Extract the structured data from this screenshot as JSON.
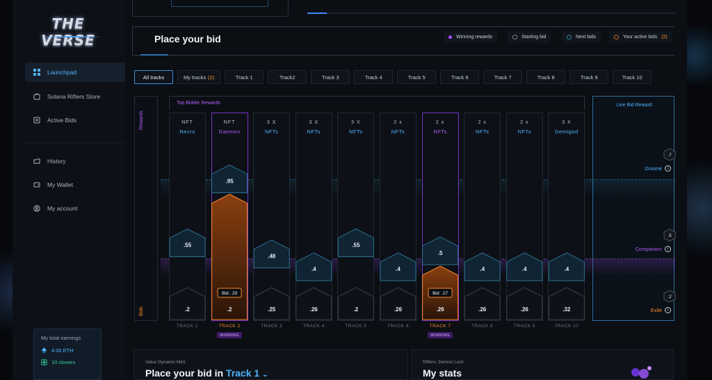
{
  "app": {
    "logo": "THE VERSE"
  },
  "sidebar": {
    "items": [
      {
        "label": "Launchpad",
        "icon": "grid-icon",
        "active": true
      },
      {
        "label": "Solana Rifters Store",
        "icon": "store-icon",
        "active": false
      },
      {
        "label": "Active Bids",
        "icon": "bids-icon",
        "active": false
      },
      {
        "label": "History",
        "icon": "folder-icon",
        "active": false
      },
      {
        "label": "My Wallet",
        "icon": "wallet-icon",
        "active": false
      },
      {
        "label": "My account",
        "icon": "user-icon",
        "active": false
      }
    ],
    "earnings": {
      "title": "My total earnings",
      "eth": "4.00 ETH",
      "clovers": "10 clovers"
    }
  },
  "header": {
    "title": "Place your bid",
    "legend": [
      {
        "label": "Winning rewards",
        "type": "dot",
        "color": "#9b4dff"
      },
      {
        "label": "Starting bid",
        "type": "hex",
        "color": "#9aa3ae"
      },
      {
        "label": "Next bids",
        "type": "hex",
        "color": "#37b7d6"
      },
      {
        "label": "Your active bids",
        "type": "hex",
        "color": "#ff8a2a",
        "count": "(2)"
      }
    ]
  },
  "tabs": [
    {
      "label": "All tracks",
      "active": true
    },
    {
      "label": "My tracks",
      "count": "(2)"
    },
    {
      "label": "Track 1"
    },
    {
      "label": "Track2"
    },
    {
      "label": "Track 3"
    },
    {
      "label": "Track 4"
    },
    {
      "label": "Track 5"
    },
    {
      "label": "Track 6"
    },
    {
      "label": "Track 7"
    },
    {
      "label": "Track 8"
    },
    {
      "label": "Track 9"
    },
    {
      "label": "Track 10"
    }
  ],
  "board": {
    "rewards_label": "Rewards",
    "bids_label": "Bids",
    "top_bidder_label": "Top Bidder Rewards",
    "line_bid_label": "Line Bid Reward",
    "winning_label": "WINNING",
    "tiers": [
      {
        "name": "Gnome",
        "value": ".7",
        "color": "#4fb4ff"
      },
      {
        "name": "Companion",
        "value": ".5",
        "color": "#b55cff"
      },
      {
        "name": "Exile",
        "value": ".2",
        "color": "#ff8a2a"
      }
    ],
    "tracks": [
      {
        "track": "TRACK 1",
        "head": "NFT",
        "sub": "Necro",
        "start": ".2",
        "next": ".55",
        "winning": false,
        "bid": null
      },
      {
        "track": "TRACK 2",
        "head": "NFT",
        "sub": "Daemon",
        "start": ".2",
        "next": ".95",
        "winning": true,
        "bid": "Bid: .29"
      },
      {
        "track": "TRACK 3",
        "head": "3 X",
        "sub": "NFTs",
        "start": ".25",
        "next": ".48",
        "winning": false,
        "bid": null
      },
      {
        "track": "TRACK 4",
        "head": "3 X",
        "sub": "NFTs",
        "start": ".26",
        "next": ".4",
        "winning": false,
        "bid": null
      },
      {
        "track": "TRACK 5",
        "head": "3 X",
        "sub": "NFTs",
        "start": ".2",
        "next": ".55",
        "winning": false,
        "bid": null
      },
      {
        "track": "TRACK 6",
        "head": "2 x",
        "sub": "NFTs",
        "start": ".26",
        "next": ".4",
        "winning": false,
        "bid": null
      },
      {
        "track": "TRACK 7",
        "head": "2 x",
        "sub": "NFTs",
        "start": ".26",
        "next": ".5",
        "winning": true,
        "bid": "Bid: .27"
      },
      {
        "track": "TRACK 8",
        "head": "2 x",
        "sub": "NFTs",
        "start": ".26",
        "next": ".4",
        "winning": false,
        "bid": null
      },
      {
        "track": "TRACK 9",
        "head": "2 x",
        "sub": "NFTs",
        "start": ".26",
        "next": ".4",
        "winning": false,
        "bid": null
      },
      {
        "track": "TRACK 10",
        "head": "3 X",
        "sub": "Demigod",
        "start": ".32",
        "next": ".4",
        "winning": false,
        "bid": null
      }
    ]
  },
  "bottom": {
    "left_pre": "Value Dynamic Mint",
    "left_title": "Place your bid in",
    "left_track": "Track 1",
    "right_pre": "Rifters: Demon Lord",
    "right_title": "My stats"
  }
}
